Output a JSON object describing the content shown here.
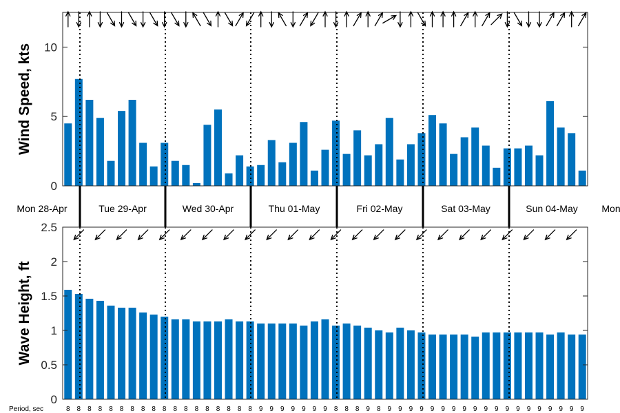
{
  "chart_data": [
    {
      "type": "bar",
      "ylabel": "Wind Speed, kts",
      "ylim": [
        0,
        12.5
      ],
      "yticks": [
        "0",
        "5",
        "10"
      ],
      "bar_color": "#0072BD",
      "values": [
        4.5,
        7.7,
        6.2,
        4.9,
        1.8,
        5.4,
        6.2,
        3.1,
        1.4,
        3.1,
        1.8,
        1.5,
        0.2,
        4.4,
        5.5,
        0.9,
        2.2,
        1.4,
        1.5,
        3.3,
        1.7,
        3.1,
        4.6,
        1.1,
        2.6,
        4.7,
        2.3,
        4.0,
        2.2,
        3.0,
        4.9,
        1.9,
        3.0,
        3.8,
        5.1,
        4.5,
        2.3,
        3.5,
        4.2,
        2.9,
        1.3,
        2.7,
        2.7,
        2.9,
        2.2,
        6.1,
        4.2,
        3.8,
        1.1
      ],
      "wind_direction_deg": [
        90,
        270,
        90,
        270,
        300,
        270,
        300,
        270,
        300,
        270,
        300,
        270,
        120,
        300,
        90,
        300,
        60,
        240,
        90,
        270,
        120,
        270,
        60,
        240,
        90,
        270,
        90,
        60,
        90,
        60,
        30,
        270,
        90,
        300,
        90,
        90,
        90,
        60,
        90,
        60,
        45,
        270,
        300,
        270,
        270,
        60,
        60,
        90,
        60
      ]
    },
    {
      "type": "bar",
      "ylabel": "Wave Height, ft",
      "ylim": [
        0,
        2.5
      ],
      "yticks": [
        "0",
        "0.5",
        "1",
        "1.5",
        "2",
        "2.5"
      ],
      "bar_color": "#0072BD",
      "values": [
        1.59,
        1.53,
        1.46,
        1.43,
        1.36,
        1.33,
        1.33,
        1.26,
        1.23,
        1.2,
        1.16,
        1.16,
        1.13,
        1.13,
        1.13,
        1.16,
        1.13,
        1.13,
        1.1,
        1.1,
        1.1,
        1.1,
        1.07,
        1.13,
        1.16,
        1.07,
        1.1,
        1.07,
        1.04,
        1.0,
        0.97,
        1.04,
        1.0,
        0.97,
        0.94,
        0.94,
        0.94,
        0.94,
        0.91,
        0.97,
        0.97,
        0.97,
        0.97,
        0.97,
        0.97,
        0.94,
        0.97,
        0.94,
        0.94
      ],
      "wave_direction_deg": 225
    }
  ],
  "days": [
    "Mon 28-Apr",
    "Tue 29-Apr",
    "Wed 30-Apr",
    "Thu 01-May",
    "Fri 02-May",
    "Sat 03-May",
    "Sun 04-May",
    "Mon"
  ],
  "period": {
    "label": "Period, sec",
    "values": [
      "8",
      "8",
      "8",
      "8",
      "8",
      "8",
      "8",
      "8",
      "8",
      "8",
      "8",
      "8",
      "8",
      "8",
      "8",
      "8",
      "8",
      "8",
      "9",
      "9",
      "9",
      "9",
      "9",
      "9",
      "9",
      "8",
      "8",
      "8",
      "9",
      "8",
      "9",
      "9",
      "9",
      "9",
      "9",
      "9",
      "9",
      "9",
      "9",
      "9",
      "9",
      "9",
      "9",
      "9",
      "9",
      "9",
      "9",
      "9",
      "9"
    ]
  }
}
